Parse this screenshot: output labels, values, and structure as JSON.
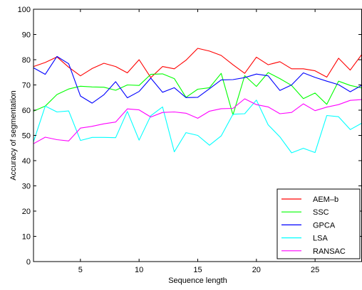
{
  "chart_data": {
    "type": "line",
    "xlabel": "Sequence length",
    "ylabel": "Accuracy of segmentation",
    "xlim": [
      1,
      29
    ],
    "ylim": [
      0,
      100
    ],
    "xticks": [
      5,
      10,
      15,
      20,
      25
    ],
    "yticks": [
      0,
      10,
      20,
      30,
      40,
      50,
      60,
      70,
      80,
      90,
      100
    ],
    "grid": false,
    "legend_position": "bottom-right",
    "x": [
      1,
      2,
      3,
      4,
      5,
      6,
      7,
      8,
      9,
      10,
      11,
      12,
      13,
      14,
      15,
      16,
      17,
      18,
      19,
      20,
      21,
      22,
      23,
      24,
      25,
      26,
      27,
      28,
      29
    ],
    "series": [
      {
        "name": "AEM–b",
        "color": "#ff0000",
        "values": [
          77.3,
          78.9,
          81.1,
          77.0,
          73.6,
          76.5,
          78.6,
          77.3,
          74.8,
          80.0,
          72.9,
          77.3,
          76.4,
          79.8,
          84.5,
          83.4,
          81.7,
          78.0,
          74.6,
          81.0,
          78.0,
          79.2,
          76.4,
          76.4,
          75.6,
          73.1,
          80.6,
          75.9,
          82.2
        ]
      },
      {
        "name": "SSC",
        "color": "#00ff00",
        "values": [
          59.6,
          61.6,
          66.2,
          68.4,
          69.5,
          69.2,
          69.1,
          67.9,
          70.0,
          69.8,
          74.2,
          74.4,
          72.5,
          65.1,
          68.3,
          68.9,
          74.6,
          58.1,
          73.7,
          69.4,
          74.9,
          72.5,
          69.8,
          64.6,
          66.8,
          62.3,
          71.5,
          69.8,
          68.8
        ]
      },
      {
        "name": "GPCA",
        "color": "#0000ff",
        "values": [
          76.8,
          74.2,
          81.3,
          78.4,
          65.6,
          62.8,
          66.1,
          71.3,
          64.9,
          67.4,
          72.7,
          67.1,
          68.9,
          65.0,
          65.1,
          68.5,
          72.0,
          72.1,
          72.9,
          74.3,
          73.6,
          67.8,
          70.0,
          74.8,
          73.0,
          71.5,
          70.1,
          67.3,
          69.9
        ]
      },
      {
        "name": "LSA",
        "color": "#00ffff",
        "values": [
          47.5,
          61.6,
          59.3,
          59.7,
          48.0,
          49.2,
          49.2,
          49.1,
          59.5,
          48.1,
          57.8,
          61.3,
          43.5,
          51.1,
          50.0,
          46.1,
          49.8,
          58.4,
          58.6,
          64.0,
          54.2,
          49.4,
          43.1,
          44.9,
          43.2,
          57.9,
          57.4,
          52.3,
          54.9
        ]
      },
      {
        "name": "RANSAC",
        "color": "#ff00ff",
        "values": [
          46.7,
          49.3,
          48.3,
          47.8,
          52.9,
          53.6,
          54.6,
          55.3,
          60.5,
          60.1,
          57.3,
          59.1,
          59.3,
          58.8,
          56.8,
          59.6,
          60.6,
          60.7,
          64.5,
          62.2,
          61.3,
          58.6,
          59.1,
          62.5,
          59.8,
          61.2,
          62.2,
          63.9,
          64.2
        ]
      }
    ]
  }
}
